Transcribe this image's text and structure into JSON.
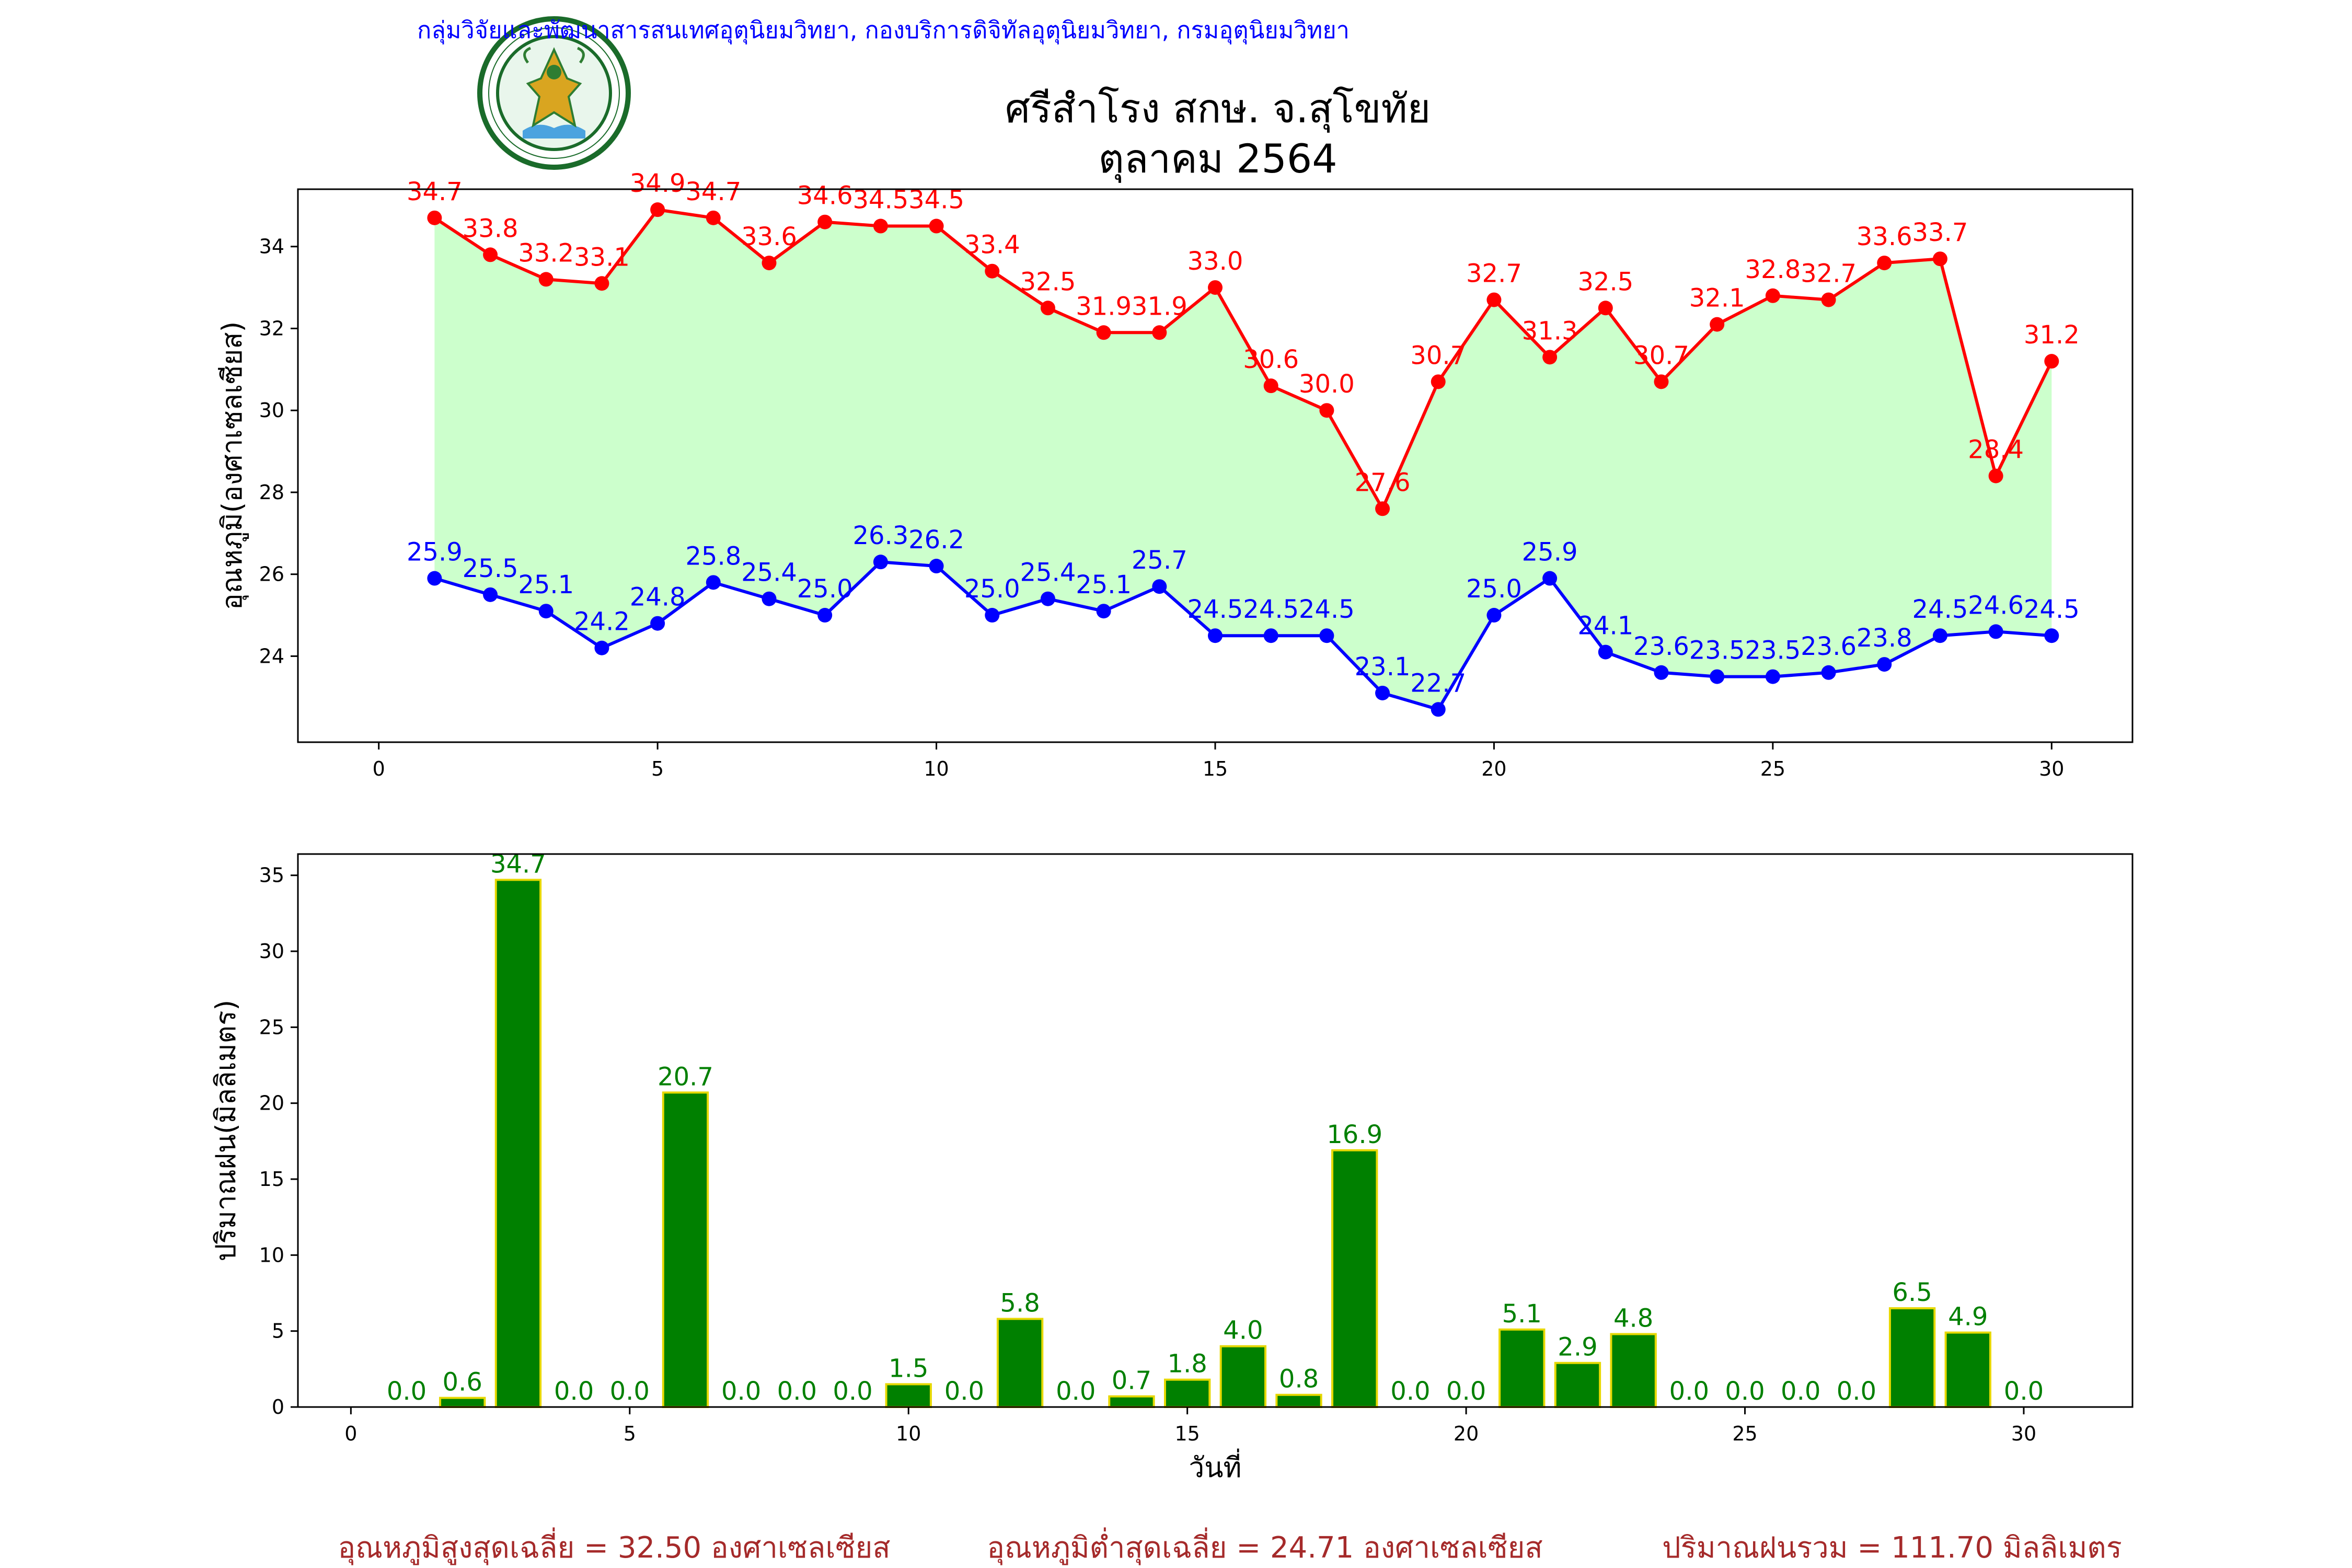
{
  "header": {
    "department": "กลุ่มวิจัยและพัฒนาสารสนเทศอุตุนิยมวิทยา, กองบริการดิจิทัลอุตุนิยมวิทยา, กรมอุตุนิยมวิทยา",
    "station": "ศรีสำโรง สกษ. จ.สุโขทัย",
    "period": "ตุลาคม 2564",
    "logo_text": "METEOROLOGICAL DEPARTMENT"
  },
  "colors": {
    "max": "#ff0000",
    "min": "#0000ff",
    "fill": "#ccffcc",
    "bar": "#008000",
    "bar_edge": "#e6d800",
    "header": "#0000ff",
    "summary": "#a52a2a"
  },
  "chart_data": [
    {
      "type": "line",
      "x": [
        1,
        2,
        3,
        4,
        5,
        6,
        7,
        8,
        9,
        10,
        11,
        12,
        13,
        14,
        15,
        16,
        17,
        18,
        19,
        20,
        21,
        22,
        23,
        24,
        25,
        26,
        27,
        28,
        29,
        30
      ],
      "series": [
        {
          "values": [
            34.7,
            33.8,
            33.2,
            33.1,
            34.9,
            34.7,
            33.6,
            34.6,
            34.5,
            34.5,
            33.4,
            32.5,
            31.9,
            31.9,
            33.0,
            30.6,
            30.0,
            27.6,
            30.7,
            32.7,
            31.3,
            32.5,
            30.7,
            32.1,
            32.8,
            32.7,
            33.6,
            33.7,
            28.4,
            31.2
          ]
        },
        {
          "values": [
            25.9,
            25.5,
            25.1,
            24.2,
            24.8,
            25.8,
            25.4,
            25.0,
            26.3,
            26.2,
            25.0,
            25.4,
            25.1,
            25.7,
            24.5,
            24.5,
            24.5,
            23.1,
            22.7,
            25.0,
            25.9,
            24.1,
            23.6,
            23.5,
            23.5,
            23.6,
            23.8,
            24.5,
            24.6,
            24.5
          ]
        }
      ],
      "ylabel": "อุณหภูมิ(องศาเซลเซียส)",
      "xlim": [
        -1.45,
        31.45
      ],
      "ylim": [
        21.9,
        35.4
      ],
      "xticks": [
        0,
        5,
        10,
        15,
        20,
        25,
        30
      ],
      "yticks": [
        24,
        26,
        28,
        30,
        32,
        34
      ],
      "grid": false
    },
    {
      "type": "bar",
      "x": [
        1,
        2,
        3,
        4,
        5,
        6,
        7,
        8,
        9,
        10,
        11,
        12,
        13,
        14,
        15,
        16,
        17,
        18,
        19,
        20,
        21,
        22,
        23,
        24,
        25,
        26,
        27,
        28,
        29,
        30
      ],
      "values": [
        0.0,
        0.6,
        34.7,
        0.0,
        0.0,
        20.7,
        0.0,
        0.0,
        0.0,
        1.5,
        0.0,
        5.8,
        0.0,
        0.7,
        1.8,
        4.0,
        0.8,
        16.9,
        0.0,
        0.0,
        5.1,
        2.9,
        4.8,
        0.0,
        0.0,
        0.0,
        0.0,
        6.5,
        4.9,
        0.0
      ],
      "ylabel": "ปริมาณฝน(มิลลิเมตร)",
      "xlabel": "วันที่",
      "xlim": [
        -0.95,
        31.95
      ],
      "ylim": [
        0,
        36.4
      ],
      "xticks": [
        0,
        5,
        10,
        15,
        20,
        25,
        30
      ],
      "yticks": [
        0,
        5,
        10,
        15,
        20,
        25,
        30,
        35
      ],
      "grid": false
    }
  ],
  "summary": {
    "avg_max": "อุณหภูมิสูงสุดเฉลี่ย = 32.50 องศาเซลเซียส",
    "avg_min": "อุณหภูมิต่ำสุดเฉลี่ย = 24.71 องศาเซลเซียส",
    "total_rain": "ปริมาณฝนรวม = 111.70 มิลลิเมตร"
  }
}
